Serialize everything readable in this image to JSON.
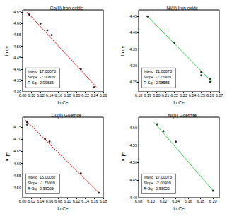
{
  "chart_data": [
    {
      "type": "scatter",
      "title": "Co(II) Iron oxide",
      "x_label": "ln Ce",
      "y_label": "ln qe",
      "grid": false,
      "xlim": [
        6.08,
        6.26
      ],
      "ylim": [
        4.3,
        4.66
      ],
      "xticks": [
        6.08,
        {
          "value": 6.1,
          "label": "6.10"
        },
        6.12,
        6.14,
        6.16,
        6.18,
        {
          "value": 6.2,
          "label": "6.20"
        },
        6.22,
        6.24,
        6.26
      ],
      "yticks": [
        {
          "value": 4.3,
          "label": "4.30"
        },
        4.35,
        {
          "value": 4.4,
          "label": "4.40"
        },
        4.45,
        {
          "value": 4.5,
          "label": "4.50"
        },
        4.55,
        {
          "value": 4.6,
          "label": "4.60"
        },
        4.65
      ],
      "series": [
        {
          "type": "scatter",
          "color": "#000000",
          "x": [
            6.095,
            6.12,
            6.135,
            6.145,
            6.21,
            6.24
          ],
          "values": [
            4.64,
            4.6,
            4.57,
            4.55,
            4.4,
            4.32
          ]
        },
        {
          "type": "line",
          "color": "#e53935",
          "x": [
            6.09,
            6.245
          ],
          "values": [
            4.65,
            4.32
          ]
        }
      ],
      "stats": [
        {
          "label": "Interc",
          "value": 17.00073
        },
        {
          "label": "Slope",
          "value": -2.00809
        },
        {
          "label": "R-Sq",
          "value": 0.99635
        }
      ]
    },
    {
      "type": "scatter",
      "title": "Ni(II) Iron oxide",
      "x_label": "ln Ce",
      "y_label": "ln qe",
      "grid": false,
      "xlim": [
        6.18,
        6.27
      ],
      "ylim": [
        4.22,
        4.47
      ],
      "xticks": [
        6.18,
        6.19,
        {
          "value": 6.2,
          "label": "6.20"
        },
        6.21,
        6.22,
        6.23,
        6.24,
        6.25,
        6.26,
        6.27
      ],
      "yticks": [
        4.25,
        {
          "value": 4.3,
          "label": "4.30"
        },
        4.35,
        {
          "value": 4.4,
          "label": "4.40"
        },
        4.45
      ],
      "series": [
        {
          "type": "scatter",
          "color": "#000000",
          "x": [
            6.19,
            6.22,
            6.25,
            6.25,
            6.26,
            6.26
          ],
          "values": [
            4.45,
            4.37,
            4.28,
            4.27,
            4.26,
            4.25
          ]
        },
        {
          "type": "line",
          "color": "#3ddc4a",
          "x": [
            6.19,
            6.262
          ],
          "values": [
            4.45,
            4.25
          ]
        }
      ],
      "stats": [
        {
          "label": "Interc",
          "value": 21.00073
        },
        {
          "label": "Slope",
          "value": -2.75909
        },
        {
          "label": "R-Sq",
          "value": 0.98585
        }
      ]
    },
    {
      "type": "scatter",
      "title": "Cu(II) Goethite",
      "x_label": "ln Ce",
      "y_label": "ln qe",
      "grid": false,
      "xlim": [
        6.0,
        6.18
      ],
      "ylim": [
        4.46,
        4.79
      ],
      "xticks": [
        {
          "value": 6.0,
          "label": "6.00"
        },
        6.02,
        6.04,
        6.06,
        6.08,
        {
          "value": 6.1,
          "label": "6.10"
        },
        6.12,
        6.14,
        6.16,
        6.18
      ],
      "yticks": [
        {
          "value": 4.5,
          "label": "4.50"
        },
        4.55,
        {
          "value": 4.6,
          "label": "4.60"
        },
        4.65,
        {
          "value": 4.7,
          "label": "4.70"
        },
        4.75
      ],
      "series": [
        {
          "type": "scatter",
          "color": "#000000",
          "x": [
            6.01,
            6.01,
            6.05,
            6.06,
            6.13,
            6.17
          ],
          "values": [
            4.77,
            4.76,
            4.7,
            4.69,
            4.56,
            4.48
          ]
        },
        {
          "type": "line",
          "color": "#e53935",
          "x": [
            6.005,
            6.17
          ],
          "values": [
            4.78,
            4.48
          ]
        }
      ],
      "stats": [
        {
          "label": "Interc",
          "value": 15.00037
        },
        {
          "label": "Slope",
          "value": -1.75009
        },
        {
          "label": "R-Sq",
          "value": 0.99569
        }
      ]
    },
    {
      "type": "scatter",
      "title": "Ni(II) Goethite",
      "x_label": "ln Ce",
      "y_label": "ln qe",
      "grid": false,
      "xlim": [
        6.08,
        6.21
      ],
      "ylim": [
        4.4,
        4.63
      ],
      "xticks": [
        6.08,
        {
          "value": 6.1,
          "label": "6.10"
        },
        6.12,
        6.14,
        6.16,
        6.18,
        {
          "value": 6.2,
          "label": "6.20"
        }
      ],
      "yticks": [
        {
          "value": 4.4,
          "label": "4.40"
        },
        4.45,
        {
          "value": 4.5,
          "label": "4.50"
        },
        4.55,
        {
          "value": 4.6,
          "label": "4.60"
        }
      ],
      "series": [
        {
          "type": "scatter",
          "color": "#000000",
          "x": [
            6.11,
            6.12,
            6.14,
            6.2
          ],
          "values": [
            4.61,
            4.59,
            4.56,
            4.42
          ]
        },
        {
          "type": "line",
          "color": "#3ddc4a",
          "x": [
            6.105,
            6.2
          ],
          "values": [
            4.615,
            4.42
          ]
        }
      ],
      "stats": [
        {
          "label": "Interc",
          "value": 17.00073
        },
        {
          "label": "Slope",
          "value": -2.00909
        },
        {
          "label": "R-Sq",
          "value": 0.99655
        }
      ]
    }
  ]
}
